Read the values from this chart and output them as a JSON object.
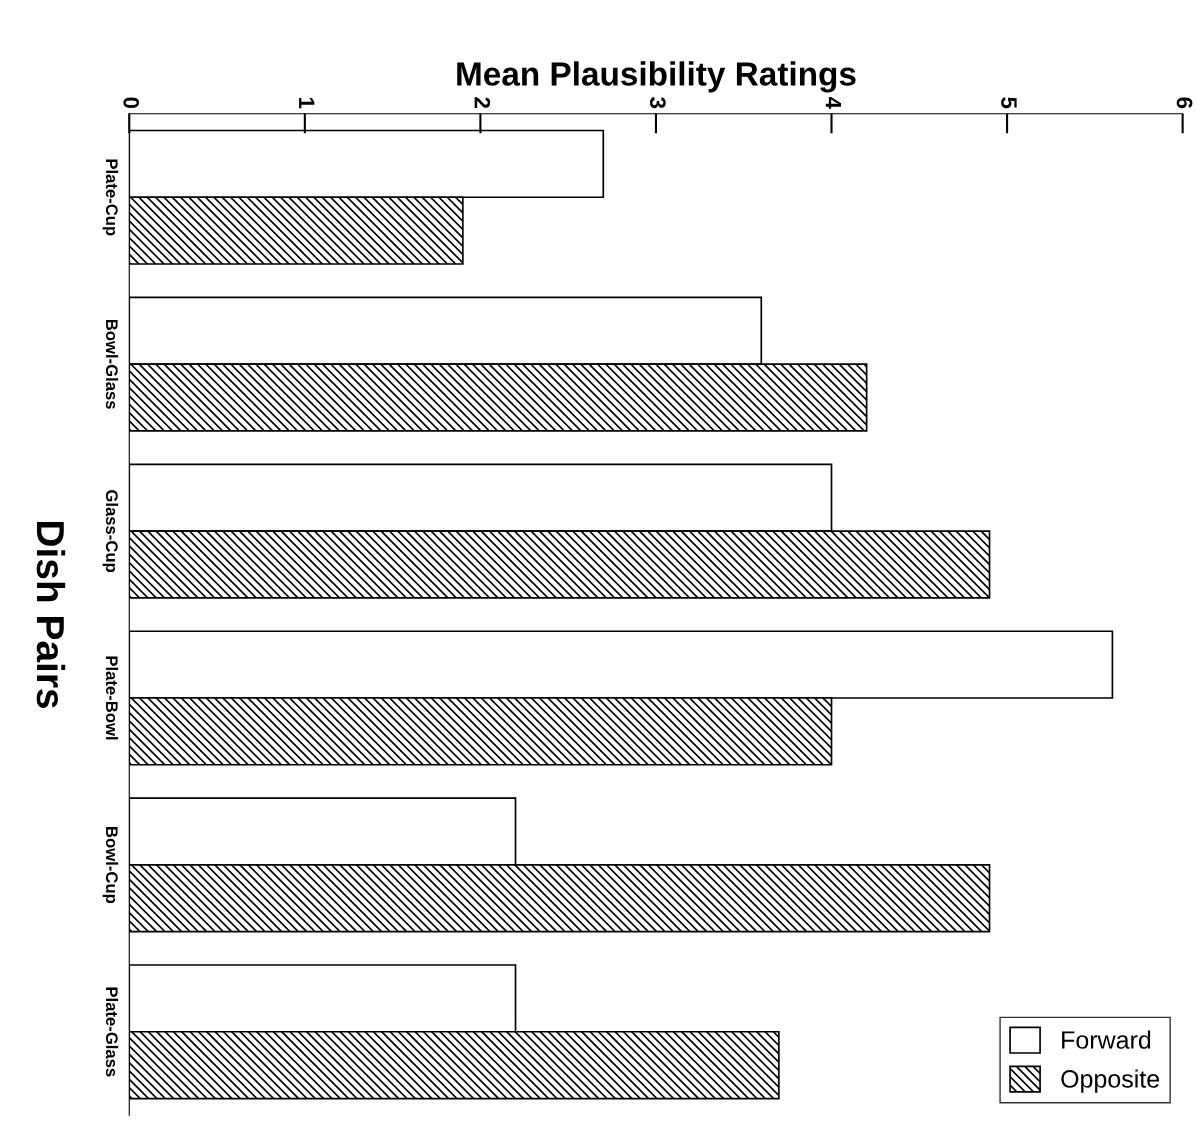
{
  "chart_data": {
    "type": "bar",
    "orientation": "horizontal",
    "xlabel": "Mean Plausibility Ratings",
    "ylabel": "Dish Pairs",
    "categories": [
      "Plate-Cup",
      "Bowl-Glass",
      "Glass-Cup",
      "Plate-Bowl",
      "Bowl-Cup",
      "Plate-Glass"
    ],
    "series": [
      {
        "name": "Forward",
        "color": "#ffffff",
        "values": [
          2.7,
          3.6,
          4.0,
          5.6,
          2.2,
          2.2
        ]
      },
      {
        "name": "Opposite",
        "color": "#000000",
        "values": [
          1.9,
          4.2,
          4.9,
          4.0,
          4.9,
          3.7
        ]
      }
    ],
    "xlim": [
      0,
      6
    ],
    "xticks": [
      0,
      1,
      2,
      3,
      4,
      5,
      6
    ],
    "grid": false,
    "legend": "bottom right"
  }
}
